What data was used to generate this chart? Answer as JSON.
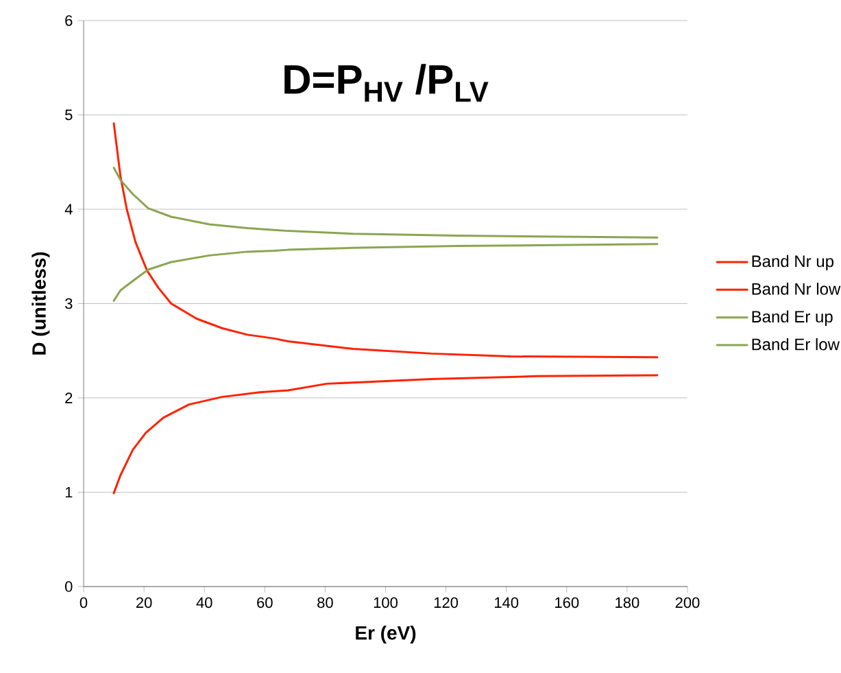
{
  "chart_data": {
    "type": "line",
    "title": "D=P$_{HV}$ /P$_{LV}$",
    "xlabel": "Er (eV)",
    "ylabel": "D (unitless)",
    "xlim": [
      0,
      200
    ],
    "xticks": [
      0,
      20,
      40,
      60,
      80,
      100,
      120,
      140,
      160,
      180,
      200
    ],
    "ylim": [
      0,
      6
    ],
    "yticks": [
      0,
      1,
      2,
      3,
      4,
      5,
      6
    ],
    "grid": "y",
    "legend": "right",
    "marker": "none",
    "line_style": "solid",
    "series": [
      {
        "name": "Band Nr up",
        "color": "#ff2200",
        "x": [
          10,
          12.2,
          14.3,
          17.2,
          21,
          24.7,
          29,
          37.4,
          45.8,
          54.2,
          63.1,
          67.7,
          89.2,
          115.2,
          141.3,
          190
        ],
        "values": [
          4.91,
          4.35,
          4.0,
          3.65,
          3.35,
          3.17,
          3.0,
          2.84,
          2.74,
          2.67,
          2.63,
          2.6,
          2.52,
          2.47,
          2.44,
          2.43
        ]
      },
      {
        "name": "Band Nr low",
        "color": "#ff2200",
        "x": [
          10,
          12.2,
          16.3,
          20.6,
          26.4,
          34.9,
          45.8,
          58.4,
          67.7,
          80.5,
          115.2,
          150,
          190
        ],
        "values": [
          0.99,
          1.18,
          1.45,
          1.63,
          1.79,
          1.93,
          2.01,
          2.06,
          2.08,
          2.15,
          2.2,
          2.23,
          2.24
        ]
      },
      {
        "name": "Band Er up",
        "color": "#8aa550",
        "x": [
          10,
          12.2,
          16.3,
          21.4,
          29,
          41.6,
          54.2,
          63.1,
          67.7,
          89.2,
          124,
          190
        ],
        "values": [
          4.44,
          4.31,
          4.16,
          4.01,
          3.92,
          3.84,
          3.8,
          3.78,
          3.77,
          3.74,
          3.72,
          3.7
        ]
      },
      {
        "name": "Band Er low",
        "color": "#8aa550",
        "x": [
          10,
          12.2,
          16.3,
          21.4,
          29,
          41.6,
          54.2,
          63.1,
          67.7,
          89.2,
          124,
          190
        ],
        "values": [
          3.03,
          3.14,
          3.24,
          3.36,
          3.44,
          3.51,
          3.55,
          3.56,
          3.57,
          3.59,
          3.61,
          3.63
        ]
      }
    ]
  }
}
